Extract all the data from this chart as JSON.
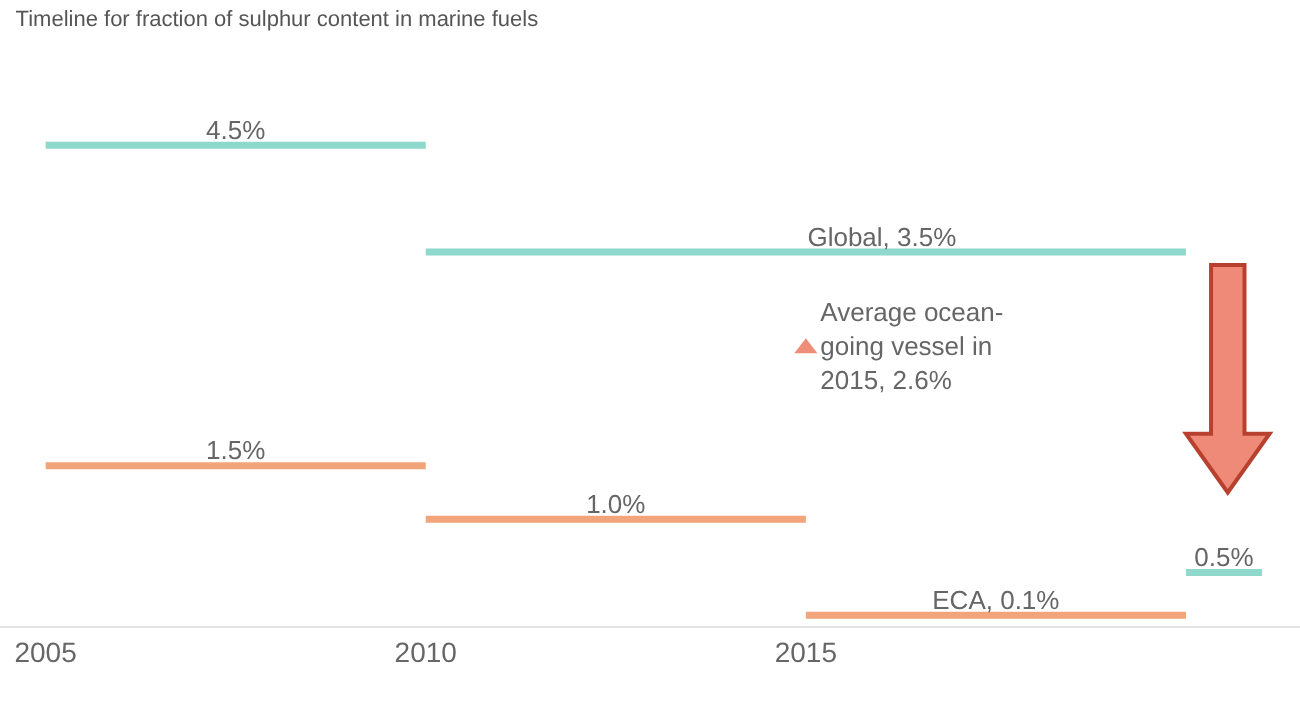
{
  "chart_data": {
    "type": "line",
    "title": "Timeline for fraction of sulphur content in marine fuels",
    "series": [
      {
        "color": "#8ed8cc",
        "x": [
          2005,
          2007.5,
          2010,
          null,
          2010,
          2016,
          2020,
          null,
          2020,
          2020.5,
          2021
        ],
        "values": [
          4.5,
          4.5,
          4.5,
          null,
          3.5,
          3.5,
          3.5,
          null,
          0.5,
          0.5,
          0.5
        ],
        "value_labels": [
          null,
          "4.5%",
          null,
          null,
          null,
          "Global, 3.5%",
          null,
          null,
          null,
          "0.5%",
          null
        ]
      },
      {
        "color": "#f2a57a",
        "x": [
          2005,
          2007.5,
          2010,
          null,
          2010,
          2012.5,
          2015,
          null,
          2015,
          2017.5,
          2020
        ],
        "values": [
          1.5,
          1.5,
          1.5,
          null,
          1.0,
          1.0,
          1.0,
          null,
          0.1,
          0.1,
          0.1
        ],
        "value_labels": [
          null,
          "1.5%",
          null,
          null,
          null,
          "1.0%",
          null,
          null,
          null,
          "ECA, 0.1%",
          null
        ]
      },
      {
        "type": "scatter",
        "marker": "triangle",
        "color": "#ee8e78",
        "x": [
          2015
        ],
        "values": [
          2.6
        ],
        "value_labels": [
          "Average ocean-\ngoing vessel in\n2015, 2.6%"
        ]
      }
    ],
    "xlim": [
      2004.4,
      2021.5
    ],
    "xticks": [
      2005,
      2010,
      2015
    ],
    "tick_labels": "x"
  }
}
